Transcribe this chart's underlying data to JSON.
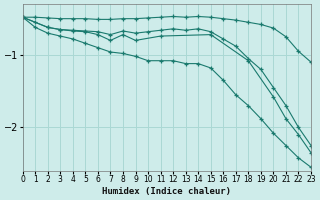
{
  "xlabel": "Humidex (Indice chaleur)",
  "ylabel": "",
  "background_color": "#ceecea",
  "grid_color": "#aad8d4",
  "line_color": "#1a7a6e",
  "xlim": [
    0,
    23
  ],
  "ylim": [
    -2.6,
    -0.3
  ],
  "yticks": [
    -2,
    -1
  ],
  "xticks": [
    0,
    1,
    2,
    3,
    4,
    5,
    6,
    7,
    8,
    9,
    10,
    11,
    12,
    13,
    14,
    15,
    16,
    17,
    18,
    19,
    20,
    21,
    22,
    23
  ],
  "series": [
    {
      "x": [
        0,
        1,
        2,
        3,
        4,
        5,
        6,
        7,
        8,
        9,
        10,
        11,
        12,
        13,
        14,
        15,
        16,
        17,
        18,
        19,
        20,
        21,
        22,
        23
      ],
      "y": [
        -0.48,
        -0.48,
        -0.49,
        -0.5,
        -0.5,
        -0.5,
        -0.51,
        -0.51,
        -0.5,
        -0.5,
        -0.49,
        -0.48,
        -0.47,
        -0.48,
        -0.47,
        -0.48,
        -0.5,
        -0.52,
        -0.55,
        -0.58,
        -0.63,
        -0.75,
        -0.95,
        -1.1
      ]
    },
    {
      "x": [
        0,
        1,
        2,
        3,
        4,
        5,
        6,
        7,
        8,
        9,
        10,
        11,
        12,
        13,
        14,
        15,
        16,
        17,
        18,
        19,
        20,
        21,
        22,
        23
      ],
      "y": [
        -0.48,
        -0.55,
        -0.62,
        -0.65,
        -0.66,
        -0.67,
        -0.68,
        -0.72,
        -0.67,
        -0.7,
        -0.68,
        -0.66,
        -0.64,
        -0.66,
        -0.64,
        -0.68,
        -0.78,
        -0.88,
        -1.05,
        -1.2,
        -1.45,
        -1.7,
        -2.0,
        -2.25
      ]
    },
    {
      "x": [
        0,
        2,
        3,
        4,
        5,
        6,
        7,
        8,
        9,
        11,
        15,
        18,
        20,
        21,
        22,
        23
      ],
      "y": [
        -0.48,
        -0.62,
        -0.65,
        -0.67,
        -0.68,
        -0.72,
        -0.8,
        -0.72,
        -0.8,
        -0.74,
        -0.72,
        -1.08,
        -1.58,
        -1.88,
        -2.1,
        -2.35
      ]
    },
    {
      "x": [
        0,
        1,
        2,
        3,
        4,
        5,
        6,
        7,
        8,
        9,
        10,
        11,
        12,
        13,
        14,
        15,
        16,
        17,
        18,
        19,
        20,
        21,
        22,
        23
      ],
      "y": [
        -0.48,
        -0.62,
        -0.7,
        -0.74,
        -0.78,
        -0.84,
        -0.9,
        -0.96,
        -0.98,
        -1.02,
        -1.08,
        -1.08,
        -1.08,
        -1.12,
        -1.12,
        -1.18,
        -1.35,
        -1.55,
        -1.7,
        -1.88,
        -2.08,
        -2.25,
        -2.42,
        -2.55
      ]
    }
  ]
}
